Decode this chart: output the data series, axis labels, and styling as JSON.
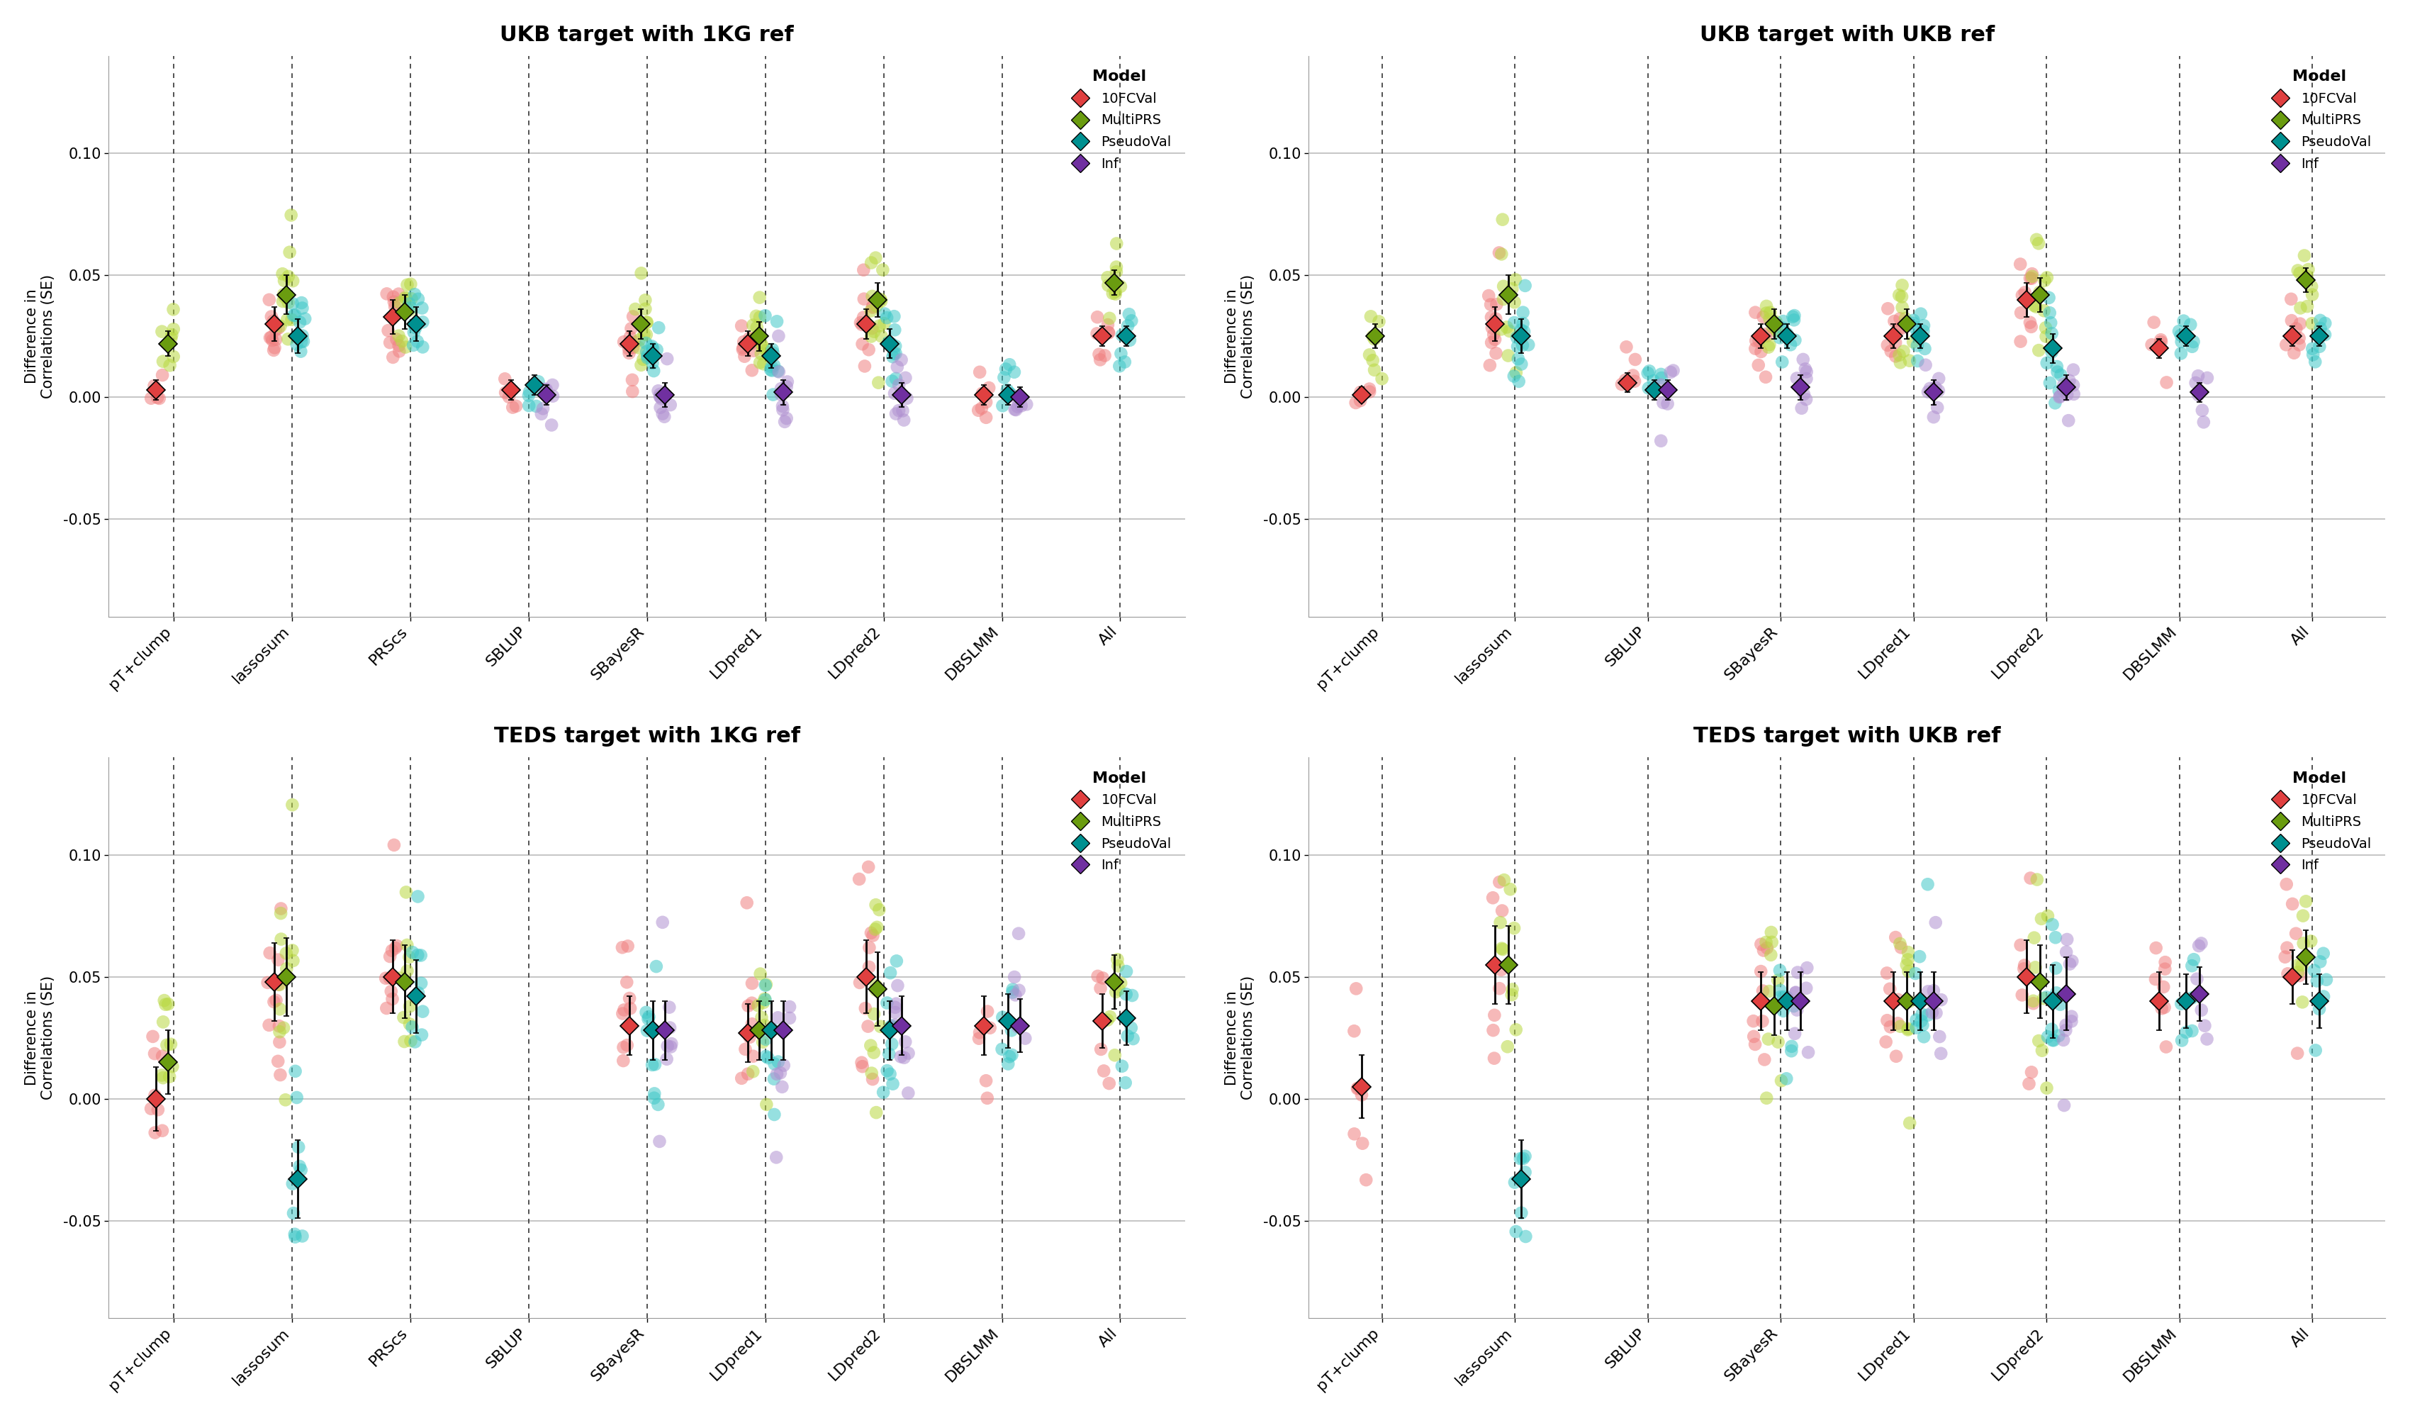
{
  "panels": [
    {
      "title": "UKB target with 1KG ref",
      "categories": [
        "pT+clump",
        "lassosum",
        "PRScs",
        "SBLUP",
        "SBayesR",
        "LDpred1",
        "LDpred2",
        "DBSLMM",
        "All"
      ],
      "models": {
        "10FCVal": {
          "means": [
            0.003,
            0.03,
            0.033,
            0.003,
            0.022,
            0.022,
            0.03,
            0.001,
            0.025
          ],
          "errors": [
            0.004,
            0.007,
            0.007,
            0.004,
            0.005,
            0.005,
            0.006,
            0.004,
            0.004
          ],
          "n_scatter": [
            5,
            12,
            12,
            5,
            10,
            10,
            12,
            8,
            8
          ]
        },
        "MultiPRS": {
          "means": [
            0.022,
            0.042,
            0.035,
            null,
            0.03,
            0.025,
            0.04,
            null,
            0.047
          ],
          "errors": [
            0.005,
            0.008,
            0.007,
            null,
            0.006,
            0.006,
            0.007,
            null,
            0.005
          ],
          "n_scatter": [
            8,
            14,
            10,
            0,
            12,
            12,
            14,
            0,
            10
          ]
        },
        "PseudoVal": {
          "means": [
            null,
            0.025,
            0.03,
            0.005,
            0.017,
            0.017,
            0.022,
            0.001,
            0.025
          ],
          "errors": [
            null,
            0.007,
            0.007,
            0.004,
            0.005,
            0.005,
            0.006,
            0.004,
            0.004
          ],
          "n_scatter": [
            0,
            12,
            12,
            6,
            10,
            10,
            12,
            8,
            8
          ]
        },
        "Inf": {
          "means": [
            null,
            null,
            null,
            0.001,
            0.001,
            0.002,
            0.001,
            0.0,
            null
          ],
          "errors": [
            null,
            null,
            null,
            0.004,
            0.005,
            0.005,
            0.005,
            0.004,
            null
          ],
          "n_scatter": [
            0,
            0,
            0,
            8,
            10,
            10,
            10,
            6,
            0
          ]
        }
      }
    },
    {
      "title": "UKB target with UKB ref",
      "categories": [
        "pT+clump",
        "lassosum",
        "SBLUP",
        "SBayesR",
        "LDpred1",
        "LDpred2",
        "DBSLMM",
        "All"
      ],
      "models": {
        "10FCVal": {
          "means": [
            0.001,
            0.03,
            0.006,
            0.025,
            0.025,
            0.04,
            0.02,
            0.025
          ],
          "errors": [
            0.003,
            0.007,
            0.004,
            0.005,
            0.005,
            0.007,
            0.004,
            0.004
          ],
          "n_scatter": [
            5,
            12,
            6,
            10,
            10,
            10,
            6,
            8
          ]
        },
        "MultiPRS": {
          "means": [
            0.025,
            0.042,
            null,
            0.03,
            0.03,
            0.042,
            null,
            0.048
          ],
          "errors": [
            0.005,
            0.008,
            null,
            0.006,
            0.006,
            0.007,
            null,
            0.005
          ],
          "n_scatter": [
            8,
            12,
            0,
            10,
            10,
            12,
            0,
            10
          ]
        },
        "PseudoVal": {
          "means": [
            null,
            0.025,
            0.003,
            0.025,
            0.025,
            0.02,
            0.025,
            0.025
          ],
          "errors": [
            null,
            0.007,
            0.004,
            0.005,
            0.005,
            0.006,
            0.004,
            0.004
          ],
          "n_scatter": [
            0,
            14,
            6,
            10,
            10,
            12,
            8,
            8
          ]
        },
        "Inf": {
          "means": [
            null,
            null,
            0.003,
            0.004,
            0.002,
            0.004,
            0.002,
            null
          ],
          "errors": [
            null,
            null,
            0.004,
            0.005,
            0.005,
            0.005,
            0.004,
            null
          ],
          "n_scatter": [
            0,
            0,
            6,
            8,
            8,
            10,
            6,
            0
          ]
        }
      }
    },
    {
      "title": "TEDS target with 1KG ref",
      "categories": [
        "pT+clump",
        "lassosum",
        "PRScs",
        "SBLUP",
        "SBayesR",
        "LDpred1",
        "LDpred2",
        "DBSLMM",
        "All"
      ],
      "models": {
        "10FCVal": {
          "means": [
            0.0,
            0.048,
            0.05,
            null,
            0.03,
            0.027,
            0.05,
            0.03,
            0.032
          ],
          "errors": [
            0.013,
            0.016,
            0.015,
            null,
            0.012,
            0.012,
            0.015,
            0.012,
            0.011
          ],
          "n_scatter": [
            8,
            12,
            10,
            0,
            10,
            10,
            12,
            6,
            6
          ]
        },
        "MultiPRS": {
          "means": [
            0.015,
            0.05,
            0.048,
            null,
            null,
            0.028,
            0.045,
            null,
            0.048
          ],
          "errors": [
            0.013,
            0.016,
            0.015,
            null,
            null,
            0.012,
            0.015,
            null,
            0.011
          ],
          "n_scatter": [
            10,
            12,
            10,
            0,
            0,
            10,
            12,
            0,
            8
          ]
        },
        "PseudoVal": {
          "means": [
            null,
            -0.033,
            0.042,
            null,
            0.028,
            0.028,
            0.028,
            0.032,
            0.033
          ],
          "errors": [
            null,
            0.016,
            0.015,
            null,
            0.012,
            0.012,
            0.012,
            0.011,
            0.011
          ],
          "n_scatter": [
            0,
            10,
            10,
            0,
            10,
            10,
            12,
            8,
            8
          ]
        },
        "Inf": {
          "means": [
            null,
            null,
            null,
            null,
            0.028,
            0.028,
            0.03,
            0.03,
            null
          ],
          "errors": [
            null,
            null,
            null,
            null,
            0.012,
            0.012,
            0.012,
            0.011,
            null
          ],
          "n_scatter": [
            0,
            0,
            0,
            0,
            8,
            8,
            10,
            6,
            0
          ]
        }
      }
    },
    {
      "title": "TEDS target with UKB ref",
      "categories": [
        "pT+clump",
        "lassosum",
        "SBLUP",
        "SBayesR",
        "LDpred1",
        "LDpred2",
        "DBSLMM",
        "All"
      ],
      "models": {
        "10FCVal": {
          "means": [
            0.005,
            0.055,
            null,
            0.04,
            0.04,
            0.05,
            0.04,
            0.05
          ],
          "errors": [
            0.013,
            0.016,
            null,
            0.012,
            0.012,
            0.015,
            0.012,
            0.011
          ],
          "n_scatter": [
            8,
            8,
            0,
            10,
            10,
            8,
            8,
            8
          ]
        },
        "MultiPRS": {
          "means": [
            null,
            0.055,
            null,
            0.038,
            0.04,
            0.048,
            null,
            0.058
          ],
          "errors": [
            null,
            0.016,
            null,
            0.012,
            0.012,
            0.015,
            null,
            0.011
          ],
          "n_scatter": [
            0,
            10,
            0,
            10,
            10,
            10,
            0,
            8
          ]
        },
        "PseudoVal": {
          "means": [
            null,
            -0.033,
            null,
            0.04,
            0.04,
            0.04,
            0.04,
            0.04
          ],
          "errors": [
            null,
            0.016,
            null,
            0.012,
            0.012,
            0.015,
            0.011,
            0.011
          ],
          "n_scatter": [
            0,
            8,
            0,
            10,
            10,
            12,
            8,
            8
          ]
        },
        "Inf": {
          "means": [
            null,
            null,
            null,
            0.04,
            0.04,
            0.043,
            0.043,
            null
          ],
          "errors": [
            null,
            null,
            null,
            0.012,
            0.012,
            0.015,
            0.011,
            null
          ],
          "n_scatter": [
            0,
            0,
            0,
            8,
            8,
            10,
            6,
            0
          ]
        }
      }
    }
  ],
  "model_order": [
    "10FCVal",
    "MultiPRS",
    "PseudoVal",
    "Inf"
  ],
  "model_colors": {
    "10FCVal": {
      "scatter": "#F08080",
      "mean": "#E04040"
    },
    "MultiPRS": {
      "scatter": "#B8D840",
      "mean": "#6A9C10"
    },
    "PseudoVal": {
      "scatter": "#40C8C8",
      "mean": "#009090"
    },
    "Inf": {
      "scatter": "#B090D0",
      "mean": "#7030A0"
    }
  },
  "scatter_alpha": 0.55,
  "scatter_size": 180,
  "mean_marker_size": 13,
  "ylim": [
    -0.09,
    0.14
  ],
  "yticks": [
    -0.05,
    0.0,
    0.05,
    0.1
  ],
  "ytick_labels": [
    "-0.05",
    "0.00",
    "0.05",
    "0.10"
  ],
  "background_color": "#FFFFFF",
  "grid_color": "#BBBBBB",
  "vline_color": "#333333",
  "ylabel": "Difference in\nCorrelations (SE)"
}
